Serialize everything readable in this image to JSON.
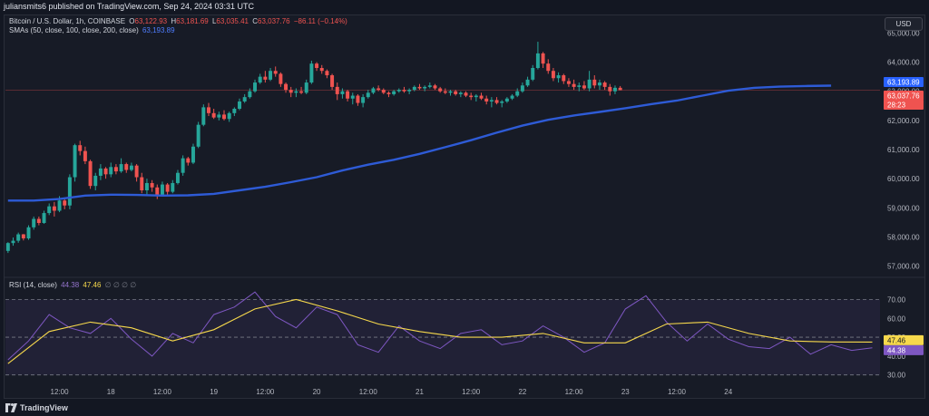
{
  "header": {
    "publish_text": "juliansmits6 published on TradingView.com, Sep 24, 2024 03:31 UTC"
  },
  "legend": {
    "symbol": "Bitcoin / U.S. Dollar, 1h, COINBASE",
    "open_label": "O",
    "open": "63,122.93",
    "high_label": "H",
    "high": "63,181.69",
    "low_label": "L",
    "low": "63,035.41",
    "close_label": "C",
    "close": "63,037.76",
    "change": "−86.11 (−0.14%)",
    "sma_label": "SMAs (50, close, 100, close, 200, close)",
    "sma_value": "63,193.89"
  },
  "currency_button": "USD",
  "rsi_legend": {
    "label": "RSI (14, close)",
    "rsi_value": "44.38",
    "ma_value": "47.46",
    "empty_marks": "∅ ∅ ∅ ∅"
  },
  "price_badges": {
    "sma": "63,193.89",
    "last": "63,037.76",
    "countdown": "28:23"
  },
  "rsi_badges": {
    "ma": "47.46",
    "rsi": "44.38"
  },
  "footer": {
    "brand": "TradingView"
  },
  "colors": {
    "up": "#26a69a",
    "down": "#ef5350",
    "sma": "#2962ff",
    "rsi": "#7e57c2",
    "rsi_ma": "#f7d94c"
  },
  "icons": {
    "brand_logo": "tradingview-logo-icon"
  },
  "chart_data": [
    {
      "type": "candlestick",
      "title": "Bitcoin / U.S. Dollar, 1h, COINBASE",
      "ylim": [
        56800,
        65200
      ],
      "y_ticks": [
        57000,
        58000,
        59000,
        60000,
        61000,
        62000,
        63000,
        64000,
        65000
      ],
      "y_tick_labels": [
        "57,000.00",
        "58,000.00",
        "59,000.00",
        "60,000.00",
        "61,000.00",
        "62,000.00",
        "63,000.00",
        "64,000.00",
        "65,000.00"
      ],
      "x_tick_labels": [
        "12:00",
        "18",
        "12:00",
        "19",
        "12:00",
        "20",
        "12:00",
        "21",
        "12:00",
        "22",
        "12:00",
        "23",
        "12:00",
        "24"
      ],
      "x_tick_index": [
        10,
        20,
        30,
        40,
        50,
        60,
        70,
        80,
        90,
        100,
        110,
        120,
        130,
        140
      ],
      "candles": [
        [
          57520,
          57820,
          57450,
          57790
        ],
        [
          57790,
          57980,
          57700,
          57870
        ],
        [
          57870,
          58150,
          57800,
          58090
        ],
        [
          58090,
          58100,
          57880,
          57950
        ],
        [
          57950,
          58400,
          57900,
          58330
        ],
        [
          58330,
          58700,
          58250,
          58620
        ],
        [
          58620,
          58700,
          58400,
          58480
        ],
        [
          58480,
          58900,
          58450,
          58820
        ],
        [
          58820,
          59150,
          58750,
          59050
        ],
        [
          59050,
          59200,
          58700,
          58900
        ],
        [
          58900,
          59400,
          58850,
          59250
        ],
        [
          59250,
          59300,
          58950,
          59080
        ],
        [
          59080,
          60150,
          58950,
          60050
        ],
        [
          60050,
          61200,
          59900,
          61150
        ],
        [
          61150,
          61300,
          60800,
          60950
        ],
        [
          60950,
          61100,
          60500,
          60600
        ],
        [
          60600,
          60650,
          59650,
          59750
        ],
        [
          59750,
          60200,
          59600,
          60100
        ],
        [
          60100,
          60500,
          59950,
          60350
        ],
        [
          60350,
          60400,
          60000,
          60150
        ],
        [
          60150,
          60550,
          60050,
          60400
        ],
        [
          60400,
          60500,
          60150,
          60250
        ],
        [
          60250,
          60700,
          60200,
          60500
        ],
        [
          60500,
          60550,
          60200,
          60300
        ],
        [
          60300,
          60550,
          60250,
          60450
        ],
        [
          60450,
          60500,
          59900,
          60050
        ],
        [
          60050,
          60200,
          59500,
          59600
        ],
        [
          59600,
          60000,
          59450,
          59850
        ],
        [
          59850,
          59950,
          59550,
          59700
        ],
        [
          59700,
          59800,
          59300,
          59450
        ],
        [
          59450,
          59900,
          59400,
          59800
        ],
        [
          59800,
          59850,
          59450,
          59550
        ],
        [
          59550,
          59950,
          59500,
          59850
        ],
        [
          59850,
          60300,
          59800,
          60200
        ],
        [
          60200,
          60800,
          60100,
          60700
        ],
        [
          60700,
          60750,
          60450,
          60550
        ],
        [
          60550,
          61200,
          60500,
          61100
        ],
        [
          61100,
          61950,
          61050,
          61850
        ],
        [
          61850,
          62550,
          61800,
          62450
        ],
        [
          62450,
          62600,
          62150,
          62250
        ],
        [
          62250,
          62400,
          62050,
          62100
        ],
        [
          62100,
          62300,
          62000,
          62200
        ],
        [
          62200,
          62350,
          62000,
          62050
        ],
        [
          62050,
          62300,
          61950,
          62250
        ],
        [
          62250,
          62450,
          62150,
          62400
        ],
        [
          62400,
          62750,
          62350,
          62650
        ],
        [
          62650,
          62900,
          62600,
          62800
        ],
        [
          62800,
          63100,
          62750,
          63000
        ],
        [
          63000,
          63400,
          62950,
          63300
        ],
        [
          63300,
          63600,
          63250,
          63500
        ],
        [
          63500,
          63700,
          63300,
          63400
        ],
        [
          63400,
          63800,
          63350,
          63700
        ],
        [
          63700,
          63850,
          63500,
          63600
        ],
        [
          63600,
          63650,
          63150,
          63250
        ],
        [
          63250,
          63300,
          62950,
          63050
        ],
        [
          63050,
          63150,
          62800,
          62950
        ],
        [
          62950,
          63100,
          62800,
          63000
        ],
        [
          63000,
          63150,
          62900,
          62950
        ],
        [
          62950,
          63400,
          62900,
          63300
        ],
        [
          63300,
          64050,
          63250,
          63950
        ],
        [
          63950,
          64000,
          63700,
          63800
        ],
        [
          63800,
          63900,
          63600,
          63700
        ],
        [
          63700,
          63750,
          63450,
          63550
        ],
        [
          63550,
          63600,
          63050,
          63150
        ],
        [
          63150,
          63300,
          62700,
          62900
        ],
        [
          62900,
          63100,
          62750,
          63000
        ],
        [
          63000,
          63050,
          62650,
          62750
        ],
        [
          62750,
          62950,
          62550,
          62850
        ],
        [
          62850,
          62900,
          62500,
          62600
        ],
        [
          62600,
          62900,
          62450,
          62800
        ],
        [
          62800,
          63050,
          62750,
          62950
        ],
        [
          62950,
          63150,
          62900,
          63100
        ],
        [
          63100,
          63200,
          63000,
          63050
        ],
        [
          63050,
          63100,
          62900,
          62950
        ],
        [
          62950,
          63000,
          62800,
          62900
        ],
        [
          62900,
          63050,
          62850,
          63000
        ],
        [
          63000,
          63100,
          62950,
          63050
        ],
        [
          63050,
          63150,
          62950,
          63000
        ],
        [
          63000,
          63100,
          62900,
          63050
        ],
        [
          63050,
          63200,
          63000,
          63150
        ],
        [
          63150,
          63250,
          63050,
          63100
        ],
        [
          63100,
          63200,
          63000,
          63150
        ],
        [
          63150,
          63300,
          63100,
          63200
        ],
        [
          63200,
          63250,
          63050,
          63100
        ],
        [
          63100,
          63150,
          62950,
          63000
        ],
        [
          63000,
          63100,
          62900,
          62950
        ],
        [
          62950,
          63050,
          62850,
          63000
        ],
        [
          63000,
          63050,
          62850,
          62900
        ],
        [
          62900,
          63000,
          62800,
          62950
        ],
        [
          62950,
          63000,
          62800,
          62850
        ],
        [
          62850,
          62950,
          62700,
          62800
        ],
        [
          62800,
          62900,
          62650,
          62850
        ],
        [
          62850,
          62950,
          62700,
          62750
        ],
        [
          62750,
          62850,
          62550,
          62650
        ],
        [
          62650,
          62800,
          62450,
          62700
        ],
        [
          62700,
          62800,
          62550,
          62600
        ],
        [
          62600,
          62700,
          62450,
          62650
        ],
        [
          62650,
          62800,
          62600,
          62750
        ],
        [
          62750,
          62900,
          62700,
          62850
        ],
        [
          62850,
          63100,
          62800,
          63000
        ],
        [
          63000,
          63300,
          62950,
          63200
        ],
        [
          63200,
          63500,
          63150,
          63400
        ],
        [
          63400,
          63900,
          63350,
          63800
        ],
        [
          63800,
          64700,
          63750,
          64300
        ],
        [
          64300,
          64350,
          63800,
          63950
        ],
        [
          63950,
          64100,
          63600,
          63700
        ],
        [
          63700,
          63800,
          63350,
          63450
        ],
        [
          63450,
          63650,
          63300,
          63550
        ],
        [
          63550,
          63600,
          63250,
          63350
        ],
        [
          63350,
          63450,
          63150,
          63250
        ],
        [
          63250,
          63400,
          63050,
          63150
        ],
        [
          63150,
          63300,
          63000,
          63200
        ],
        [
          63200,
          63350,
          63050,
          63100
        ],
        [
          63100,
          63700,
          63000,
          63400
        ],
        [
          63400,
          63550,
          63100,
          63200
        ],
        [
          63200,
          63400,
          63050,
          63300
        ],
        [
          63300,
          63350,
          63050,
          63150
        ],
        [
          63150,
          63250,
          62850,
          63000
        ],
        [
          63000,
          63200,
          62900,
          63120
        ],
        [
          63120,
          63180,
          63035,
          63038
        ]
      ],
      "sma": [
        [
          0,
          59250
        ],
        [
          5,
          59250
        ],
        [
          10,
          59300
        ],
        [
          15,
          59420
        ],
        [
          20,
          59450
        ],
        [
          25,
          59440
        ],
        [
          30,
          59420
        ],
        [
          35,
          59430
        ],
        [
          40,
          59480
        ],
        [
          45,
          59600
        ],
        [
          50,
          59720
        ],
        [
          55,
          59880
        ],
        [
          60,
          60050
        ],
        [
          65,
          60280
        ],
        [
          70,
          60480
        ],
        [
          75,
          60650
        ],
        [
          80,
          60850
        ],
        [
          85,
          61080
        ],
        [
          90,
          61320
        ],
        [
          95,
          61580
        ],
        [
          100,
          61820
        ],
        [
          105,
          62020
        ],
        [
          110,
          62170
        ],
        [
          115,
          62290
        ],
        [
          120,
          62420
        ],
        [
          125,
          62560
        ],
        [
          130,
          62680
        ],
        [
          135,
          62850
        ],
        [
          140,
          63020
        ],
        [
          145,
          63120
        ],
        [
          150,
          63160
        ],
        [
          155,
          63180
        ],
        [
          160,
          63193
        ]
      ]
    },
    {
      "type": "line",
      "title": "RSI (14, close)",
      "ylim": [
        26,
        76
      ],
      "y_ticks": [
        30,
        40,
        50,
        60,
        70
      ],
      "y_tick_labels": [
        "30.00",
        "40.00",
        "50.00",
        "60.00",
        "70.00"
      ],
      "band": [
        30,
        70
      ],
      "midline": 50,
      "series": [
        {
          "name": "RSI",
          "x": [
            0,
            4,
            8,
            12,
            16,
            20,
            24,
            28,
            32,
            36,
            40,
            44,
            48,
            52,
            56,
            60,
            64,
            68,
            72,
            76,
            80,
            84,
            88,
            92,
            96,
            100,
            104,
            108,
            112,
            116,
            120,
            124,
            128,
            132,
            136,
            140,
            144,
            148,
            152,
            156,
            160,
            164,
            168
          ],
          "values": [
            38,
            48,
            62,
            55,
            52,
            60,
            49,
            40,
            52,
            47,
            62,
            66,
            74,
            61,
            55,
            66,
            62,
            46,
            42,
            56,
            48,
            44,
            52,
            54,
            46,
            48,
            56,
            50,
            42,
            47,
            65,
            72,
            58,
            48,
            57,
            49,
            45,
            44,
            50,
            41,
            46,
            43,
            44.38
          ]
        },
        {
          "name": "RSI MA",
          "x": [
            0,
            8,
            16,
            24,
            32,
            40,
            48,
            56,
            64,
            72,
            80,
            88,
            96,
            104,
            112,
            120,
            128,
            136,
            144,
            152,
            160,
            168
          ],
          "values": [
            36,
            53,
            58,
            55,
            48,
            54,
            65,
            70,
            64,
            57,
            53,
            50,
            50,
            52,
            47,
            47,
            57,
            58,
            52,
            48,
            47.5,
            47.46
          ]
        }
      ]
    }
  ]
}
